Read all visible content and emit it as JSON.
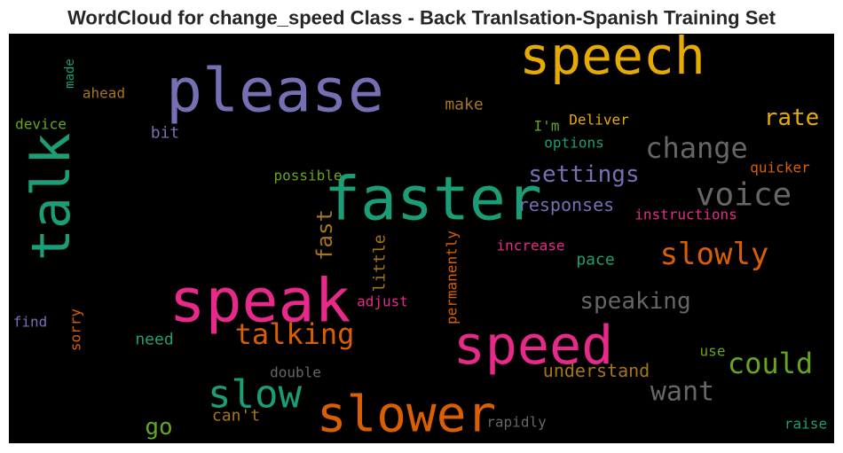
{
  "chart_data": {
    "type": "wordcloud",
    "title": "WordCloud for change_speed Class - Back Tranlsation-Spanish Training Set",
    "background": "#000000",
    "words": [
      {
        "text": "speech",
        "color": "#e6ab02"
      },
      {
        "text": "please",
        "color": "#7570b3"
      },
      {
        "text": "faster",
        "color": "#1b9e77"
      },
      {
        "text": "talk",
        "color": "#1b9e77"
      },
      {
        "text": "speak",
        "color": "#e7298a"
      },
      {
        "text": "speed",
        "color": "#e7298a"
      },
      {
        "text": "slower",
        "color": "#d95f02"
      },
      {
        "text": "slow",
        "color": "#1b9e77"
      },
      {
        "text": "voice",
        "color": "#666666"
      },
      {
        "text": "change",
        "color": "#666666"
      },
      {
        "text": "slowly",
        "color": "#d95f02"
      },
      {
        "text": "settings",
        "color": "#7570b3"
      },
      {
        "text": "responses",
        "color": "#7570b3"
      },
      {
        "text": "rate",
        "color": "#e6ab02"
      },
      {
        "text": "could",
        "color": "#66a61e"
      },
      {
        "text": "want",
        "color": "#666666"
      },
      {
        "text": "talking",
        "color": "#d95f02"
      },
      {
        "text": "speaking",
        "color": "#666666"
      },
      {
        "text": "understand",
        "color": "#a6761d"
      },
      {
        "text": "go",
        "color": "#66a61e"
      },
      {
        "text": "can't",
        "color": "#a6761d"
      },
      {
        "text": "fast",
        "color": "#a6761d"
      },
      {
        "text": "little",
        "color": "#a6761d"
      },
      {
        "text": "permanently",
        "color": "#d95f02"
      },
      {
        "text": "make",
        "color": "#a6761d"
      },
      {
        "text": "I'm",
        "color": "#66a61e"
      },
      {
        "text": "Deliver",
        "color": "#e6ab02"
      },
      {
        "text": "options",
        "color": "#1b9e77"
      },
      {
        "text": "quicker",
        "color": "#d95f02"
      },
      {
        "text": "instructions",
        "color": "#e7298a"
      },
      {
        "text": "increase",
        "color": "#e7298a"
      },
      {
        "text": "pace",
        "color": "#1b9e77"
      },
      {
        "text": "adjust",
        "color": "#e7298a"
      },
      {
        "text": "sorry",
        "color": "#d95f02"
      },
      {
        "text": "need",
        "color": "#1b9e77"
      },
      {
        "text": "find",
        "color": "#7570b3"
      },
      {
        "text": "double",
        "color": "#666666"
      },
      {
        "text": "rapidly",
        "color": "#666666"
      },
      {
        "text": "use",
        "color": "#66a61e"
      },
      {
        "text": "raise",
        "color": "#1b9e77"
      },
      {
        "text": "possible",
        "color": "#66a61e"
      },
      {
        "text": "bit",
        "color": "#7570b3"
      },
      {
        "text": "device",
        "color": "#66a61e"
      },
      {
        "text": "ahead",
        "color": "#a6761d"
      },
      {
        "text": "made",
        "color": "#1b9e77"
      }
    ]
  }
}
